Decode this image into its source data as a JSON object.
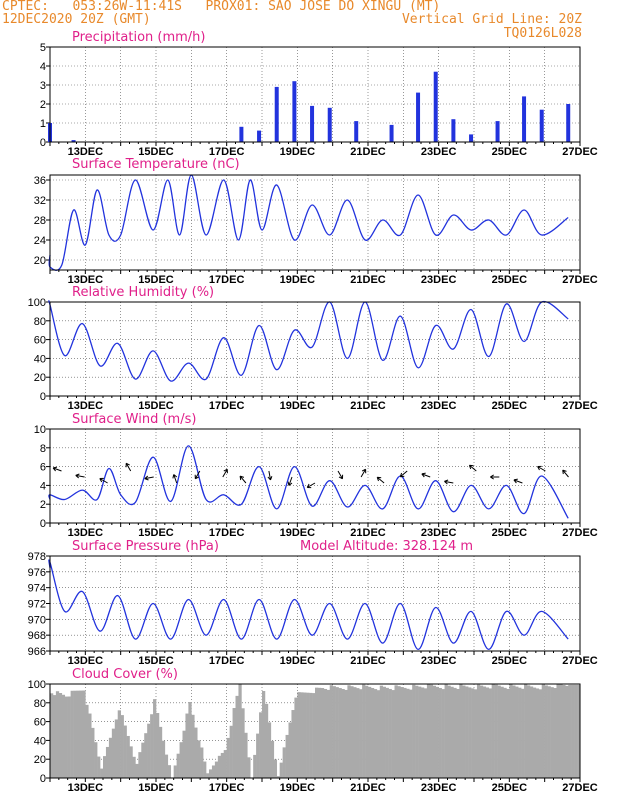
{
  "header": {
    "line1_left": "CPTEC:   053:26W-11:41S   PROX01: SAO JOSE DO XINGU (MT)",
    "line2_left": "12DEC2020 20Z (GMT)",
    "line2_right": "Vertical Grid Line: 20Z",
    "line3_right": "TQ0126L028"
  },
  "colors": {
    "header": "#e8892b",
    "title": "#e0208a",
    "series": "#2233dd",
    "cloud": "#aaaaaa"
  },
  "date_labels": [
    "13DEC",
    "15DEC",
    "17DEC",
    "19DEC",
    "21DEC",
    "23DEC",
    "25DEC",
    "27DEC"
  ],
  "chart_data": [
    {
      "id": "precip",
      "type": "bar",
      "title": "Precipitation (mm/h)",
      "ylim": [
        0,
        5
      ],
      "yticks": [
        0,
        1,
        2,
        3,
        4,
        5
      ],
      "x": [
        "12DEC",
        "12DEC",
        "13DEC",
        "18DEC",
        "18DEC",
        "19DEC",
        "19DEC",
        "20DEC",
        "20DEC",
        "21DEC",
        "22DEC",
        "23DEC",
        "23DEC",
        "24DEC",
        "24DEC",
        "25DEC",
        "26DEC",
        "26DEC",
        "27DEC"
      ],
      "values": [
        1.0,
        0.3,
        0.1,
        0.8,
        0.6,
        2.9,
        3.2,
        1.9,
        1.8,
        1.1,
        0.9,
        2.6,
        3.7,
        1.2,
        0.4,
        1.1,
        2.4,
        1.7,
        2.0
      ]
    },
    {
      "id": "temp",
      "type": "line",
      "title": "Surface Temperature (nC)",
      "ylim": [
        18,
        37
      ],
      "yticks": [
        20,
        24,
        28,
        32,
        36
      ],
      "x": [
        "12DEC",
        "12DEC",
        "13DEC",
        "13DEC",
        "13DEC",
        "14DEC",
        "14DEC",
        "14DEC",
        "15DEC",
        "15DEC",
        "16DEC",
        "16DEC",
        "16DEC",
        "17DEC",
        "17DEC",
        "18DEC",
        "18DEC",
        "18DEC",
        "19DEC",
        "19DEC",
        "20DEC",
        "20DEC",
        "21DEC",
        "21DEC",
        "22DEC",
        "22DEC",
        "23DEC",
        "23DEC",
        "24DEC",
        "24DEC",
        "25DEC",
        "25DEC",
        "26DEC",
        "26DEC",
        "27DEC"
      ],
      "values": [
        21,
        18.6,
        19,
        30,
        23,
        34,
        25,
        25,
        36,
        26,
        36,
        25,
        37,
        25,
        36,
        24,
        36,
        26,
        35,
        24,
        31,
        25,
        32,
        24,
        28,
        25,
        33,
        25,
        29,
        26,
        28,
        25,
        30,
        25,
        28.5
      ]
    },
    {
      "id": "rh",
      "type": "line",
      "title": "Relative Humidity (%)",
      "ylim": [
        0,
        100
      ],
      "yticks": [
        0,
        20,
        40,
        60,
        80,
        100
      ],
      "x": [
        "12DEC",
        "12DEC",
        "13DEC",
        "13DEC",
        "14DEC",
        "14DEC",
        "15DEC",
        "15DEC",
        "16DEC",
        "16DEC",
        "17DEC",
        "17DEC",
        "18DEC",
        "18DEC",
        "19DEC",
        "19DEC",
        "20DEC",
        "20DEC",
        "21DEC",
        "21DEC",
        "22DEC",
        "22DEC",
        "23DEC",
        "23DEC",
        "24DEC",
        "24DEC",
        "25DEC",
        "25DEC",
        "26DEC",
        "26DEC",
        "27DEC"
      ],
      "values": [
        98,
        97,
        43,
        77,
        32,
        56,
        18,
        48,
        16,
        35,
        18,
        62,
        22,
        75,
        28,
        70,
        52,
        100,
        40,
        100,
        38,
        85,
        30,
        75,
        50,
        92,
        42,
        98,
        58,
        100,
        82
      ]
    },
    {
      "id": "wind",
      "type": "line",
      "title": "Surface Wind (m/s)",
      "ylim": [
        0,
        10
      ],
      "yticks": [
        0,
        2,
        4,
        6,
        8,
        10
      ],
      "x": [
        "12DEC",
        "12DEC",
        "13DEC",
        "13DEC",
        "14DEC",
        "14DEC",
        "14DEC",
        "15DEC",
        "15DEC",
        "16DEC",
        "16DEC",
        "17DEC",
        "17DEC",
        "18DEC",
        "18DEC",
        "19DEC",
        "19DEC",
        "20DEC",
        "20DEC",
        "21DEC",
        "21DEC",
        "22DEC",
        "22DEC",
        "23DEC",
        "23DEC",
        "24DEC",
        "24DEC",
        "25DEC",
        "25DEC",
        "26DEC",
        "26DEC",
        "27DEC"
      ],
      "values": [
        2.5,
        3,
        2.5,
        3.5,
        2.5,
        5.8,
        3,
        2.2,
        7,
        2.3,
        8.2,
        2.5,
        3,
        2,
        6,
        1.5,
        6,
        1.8,
        4.5,
        1.7,
        4,
        1.5,
        5,
        1.5,
        4.5,
        1.2,
        4,
        1.5,
        4,
        1,
        5,
        0.5
      ],
      "arrow_count": 23
    },
    {
      "id": "pres",
      "type": "line",
      "title": "Surface Pressure (hPa)",
      "subtitle": "Model Altitude: 328.124 m",
      "ylim": [
        966,
        978
      ],
      "yticks": [
        966,
        968,
        970,
        972,
        974,
        976,
        978
      ],
      "x": [
        "12DEC",
        "12DEC",
        "13DEC",
        "13DEC",
        "14DEC",
        "14DEC",
        "15DEC",
        "15DEC",
        "16DEC",
        "16DEC",
        "17DEC",
        "17DEC",
        "18DEC",
        "18DEC",
        "19DEC",
        "19DEC",
        "20DEC",
        "20DEC",
        "21DEC",
        "21DEC",
        "22DEC",
        "22DEC",
        "23DEC",
        "23DEC",
        "24DEC",
        "24DEC",
        "25DEC",
        "25DEC",
        "26DEC",
        "26DEC",
        "27DEC"
      ],
      "values": [
        976.5,
        977.2,
        971,
        973.5,
        968.5,
        973,
        967.5,
        972,
        967.5,
        972.5,
        968,
        972.5,
        967.5,
        972.5,
        967.5,
        972.5,
        968,
        972,
        967.5,
        972,
        967,
        972,
        966.2,
        971.5,
        967,
        971,
        966.2,
        971,
        968,
        971,
        967.5
      ]
    },
    {
      "id": "cloud",
      "type": "area",
      "title": "Cloud Cover (%)",
      "ylim": [
        0,
        100
      ],
      "yticks": [
        0,
        20,
        40,
        60,
        80,
        100
      ],
      "x": [
        "12DEC",
        "13DEC",
        "13DEC",
        "14DEC",
        "14DEC",
        "15DEC",
        "15DEC",
        "16DEC",
        "16DEC",
        "17DEC",
        "17DEC",
        "18DEC",
        "18DEC",
        "18DEC",
        "19DEC",
        "19DEC",
        "20DEC",
        "21DEC",
        "22DEC",
        "23DEC",
        "24DEC",
        "25DEC",
        "26DEC",
        "27DEC"
      ],
      "values": [
        92,
        88,
        95,
        10,
        75,
        15,
        82,
        0,
        80,
        5,
        30,
        100,
        0,
        95,
        2,
        88,
        96,
        97,
        96,
        98,
        97,
        98,
        97,
        99
      ]
    }
  ]
}
